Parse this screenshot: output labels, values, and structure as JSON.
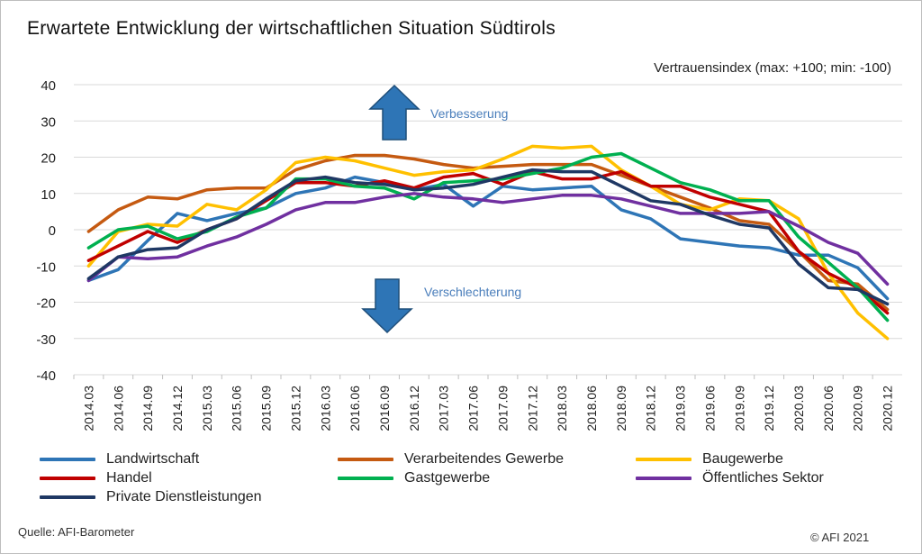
{
  "title": "Erwartete  Entwicklung  der wirtschaftlichen  Situation  Südtirols",
  "source": "Quelle: AFI-Barometer",
  "copyright": "© AFI 2021",
  "chart_data": {
    "type": "line",
    "title": "Erwartete  Entwicklung  der wirtschaftlichen  Situation  Südtirols",
    "subtitle": "Vertrauensindex (max: +100; min: -100)",
    "xlabel": "",
    "ylabel": "",
    "ylim": [
      -40,
      40
    ],
    "yticks": [
      40,
      30,
      20,
      10,
      0,
      -10,
      -20,
      -30,
      -40
    ],
    "grid": true,
    "legend_position": "bottom",
    "annotations": {
      "up": "Verbesserung",
      "down": "Verschlechterung"
    },
    "categories": [
      "2014.03",
      "2014.06",
      "2014.09",
      "2014.12",
      "2015.03",
      "2015.06",
      "2015.09",
      "2015.12",
      "2016.03",
      "2016.06",
      "2016.09",
      "2016.12",
      "2017.03",
      "2017.06",
      "2017.09",
      "2017.12",
      "2018.03",
      "2018.06",
      "2018.09",
      "2018.12",
      "2019.03",
      "2019.06",
      "2019.09",
      "2019.12",
      "2020.03",
      "2020.06",
      "2020.09",
      "2020.12"
    ],
    "series": [
      {
        "name": "Landwirtschaft",
        "color": "#2e75b6",
        "values": [
          -14,
          -11,
          -3,
          4.5,
          2.5,
          4.5,
          6,
          10,
          11.5,
          14.5,
          13,
          11,
          12.5,
          6.5,
          12,
          11,
          11.5,
          12,
          5.5,
          3,
          -2.5,
          -3.5,
          -4.5,
          -5,
          -7,
          -7,
          -10.5,
          -19
        ]
      },
      {
        "name": "Verarbeitendes Gewerbe",
        "color": "#c55a11",
        "values": [
          -0.5,
          5.5,
          9,
          8.5,
          11,
          11.5,
          11.5,
          16.5,
          19,
          20.5,
          20.5,
          19.5,
          18,
          17,
          17.5,
          18,
          18,
          18,
          15,
          12,
          9,
          6,
          2.5,
          1.5,
          -6,
          -14,
          -15,
          -22
        ]
      },
      {
        "name": "Baugewerbe",
        "color": "#ffc000",
        "values": [
          -10,
          -0.5,
          1.5,
          1,
          7,
          5.5,
          11,
          18.5,
          20,
          19,
          17,
          15,
          16,
          16.5,
          19.5,
          23,
          22.5,
          23,
          16.5,
          12,
          7,
          5.5,
          8.5,
          8,
          3,
          -12,
          -23,
          -30
        ]
      },
      {
        "name": "Handel",
        "color": "#c00000",
        "values": [
          -8.5,
          -4.5,
          -0.5,
          -3.5,
          0,
          3,
          8,
          13,
          13,
          12,
          13.5,
          11.5,
          14.5,
          15.5,
          12.5,
          16,
          14,
          14,
          16,
          12,
          12,
          9,
          7,
          5,
          -6,
          -12,
          -16,
          -23
        ]
      },
      {
        "name": "Gastgewerbe",
        "color": "#00b050",
        "values": [
          -5,
          0,
          1,
          -2.5,
          -0.5,
          3.5,
          6,
          14,
          14,
          12,
          11.5,
          8.5,
          13,
          13.5,
          14,
          15.5,
          17,
          20,
          21,
          17,
          13,
          11,
          8,
          8,
          -2,
          -9,
          -16,
          -25
        ]
      },
      {
        "name": "Öffentliches Sektor",
        "color": "#7030a0",
        "values": [
          -14,
          -7.5,
          -8,
          -7.5,
          -4.5,
          -2,
          1.5,
          5.5,
          7.5,
          7.5,
          9,
          10,
          9,
          8.5,
          7.5,
          8.5,
          9.5,
          9.5,
          8.5,
          6.5,
          4.5,
          4.5,
          4.5,
          5,
          1,
          -3.5,
          -6.5,
          -15
        ]
      },
      {
        "name": "Private Dienstleistungen",
        "color": "#1f3864",
        "values": [
          -13.5,
          -7.5,
          -5.5,
          -5,
          0,
          3,
          8.5,
          13.5,
          14.5,
          13,
          12.5,
          11,
          11.5,
          12.5,
          14.5,
          16.5,
          16,
          16,
          12,
          8,
          7,
          4,
          1.5,
          0.5,
          -9.5,
          -16,
          -16.5,
          -20.5
        ]
      }
    ]
  }
}
